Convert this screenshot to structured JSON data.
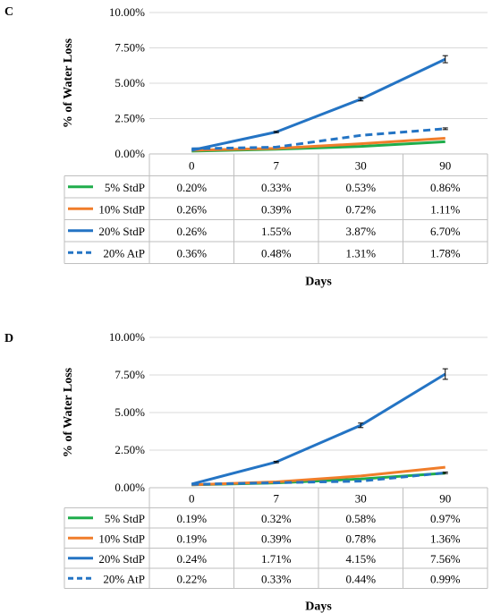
{
  "panels": [
    {
      "letter": "C",
      "chart_data": {
        "type": "line",
        "categories": [
          "0",
          "7",
          "30",
          "90"
        ],
        "series": [
          {
            "name": "5% StdP",
            "values": [
              0.2,
              0.33,
              0.53,
              0.86
            ],
            "labels": [
              "0.20%",
              "0.33%",
              "0.53%",
              "0.86%"
            ],
            "color": "#1fad4b",
            "dashed": false
          },
          {
            "name": "10% StdP",
            "values": [
              0.26,
              0.39,
              0.72,
              1.11
            ],
            "labels": [
              "0.26%",
              "0.39%",
              "0.72%",
              "1.11%"
            ],
            "color": "#f07d2a",
            "dashed": false
          },
          {
            "name": "20% StdP",
            "values": [
              0.26,
              1.55,
              3.87,
              6.7
            ],
            "labels": [
              "0.26%",
              "1.55%",
              "3.87%",
              "6.70%"
            ],
            "color": "#2474c4",
            "dashed": false
          },
          {
            "name": "20% AtP",
            "values": [
              0.36,
              0.48,
              1.31,
              1.78
            ],
            "labels": [
              "0.36%",
              "0.48%",
              "1.31%",
              "1.78%"
            ],
            "color": "#2474c4",
            "dashed": true
          }
        ],
        "error_bars": [
          {
            "series": "20% StdP",
            "index": 1,
            "err": 0.05
          },
          {
            "series": "20% StdP",
            "index": 2,
            "err": 0.12
          },
          {
            "series": "20% StdP",
            "index": 3,
            "err": 0.25
          },
          {
            "series": "20% AtP",
            "index": 3,
            "err": 0.06
          }
        ],
        "ylabel": "% of Water Loss",
        "xlabel": "Days",
        "ylim": [
          0,
          10
        ],
        "yticks": [
          "0.00%",
          "2.50%",
          "5.00%",
          "7.50%",
          "10.00%"
        ],
        "grid": true,
        "legend": "data-table"
      }
    },
    {
      "letter": "D",
      "chart_data": {
        "type": "line",
        "categories": [
          "0",
          "7",
          "30",
          "90"
        ],
        "series": [
          {
            "name": "5% StdP",
            "values": [
              0.19,
              0.32,
              0.58,
              0.97
            ],
            "labels": [
              "0.19%",
              "0.32%",
              "0.58%",
              "0.97%"
            ],
            "color": "#1fad4b",
            "dashed": false
          },
          {
            "name": "10% StdP",
            "values": [
              0.19,
              0.39,
              0.78,
              1.36
            ],
            "labels": [
              "0.19%",
              "0.39%",
              "0.78%",
              "1.36%"
            ],
            "color": "#f07d2a",
            "dashed": false
          },
          {
            "name": "20% StdP",
            "values": [
              0.24,
              1.71,
              4.15,
              7.56
            ],
            "labels": [
              "0.24%",
              "1.71%",
              "4.15%",
              "7.56%"
            ],
            "color": "#2474c4",
            "dashed": false
          },
          {
            "name": "20% AtP",
            "values": [
              0.22,
              0.33,
              0.44,
              0.99
            ],
            "labels": [
              "0.22%",
              "0.33%",
              "0.44%",
              "0.99%"
            ],
            "color": "#2474c4",
            "dashed": true
          }
        ],
        "error_bars": [
          {
            "series": "20% StdP",
            "index": 1,
            "err": 0.05
          },
          {
            "series": "20% StdP",
            "index": 2,
            "err": 0.15
          },
          {
            "series": "20% StdP",
            "index": 3,
            "err": 0.35
          },
          {
            "series": "20% AtP",
            "index": 3,
            "err": 0.05
          }
        ],
        "ylabel": "% of Water Loss",
        "xlabel": "Days",
        "ylim": [
          0,
          10
        ],
        "yticks": [
          "0.00%",
          "2.50%",
          "5.00%",
          "7.50%",
          "10.00%"
        ],
        "grid": true,
        "legend": "data-table"
      }
    }
  ]
}
